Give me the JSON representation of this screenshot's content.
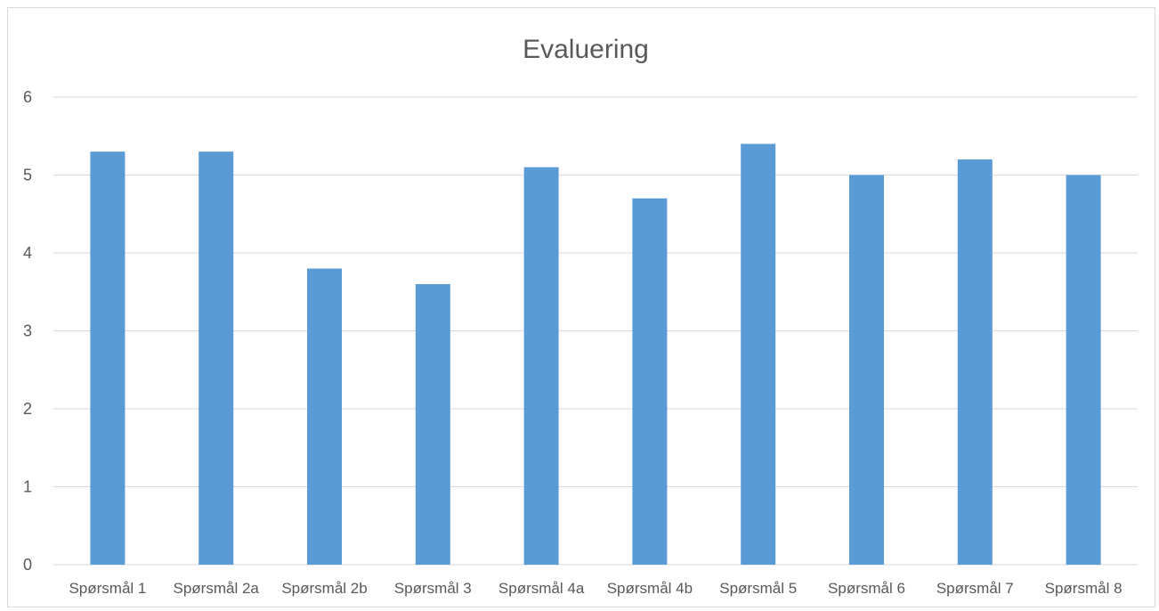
{
  "chart_data": {
    "type": "bar",
    "title": "Evaluering",
    "xlabel": "",
    "ylabel": "",
    "categories": [
      "Spørsmål 1",
      "Spørsmål 2a",
      "Spørsmål 2b",
      "Spørsmål 3",
      "Spørsmål 4a",
      "Spørsmål 4b",
      "Spørsmål 5",
      "Spørsmål 6",
      "Spørsmål 7",
      "Spørsmål 8"
    ],
    "values": [
      5.3,
      5.3,
      3.8,
      3.6,
      5.1,
      4.7,
      5.4,
      5.0,
      5.2,
      5.0
    ],
    "ylim": [
      0,
      6
    ],
    "yticks": [
      "0",
      "1",
      "2",
      "3",
      "4",
      "5",
      "6"
    ],
    "grid": true,
    "legend": "none",
    "bar_color": "#5b9bd5",
    "grid_color": "#d9d9d9"
  }
}
